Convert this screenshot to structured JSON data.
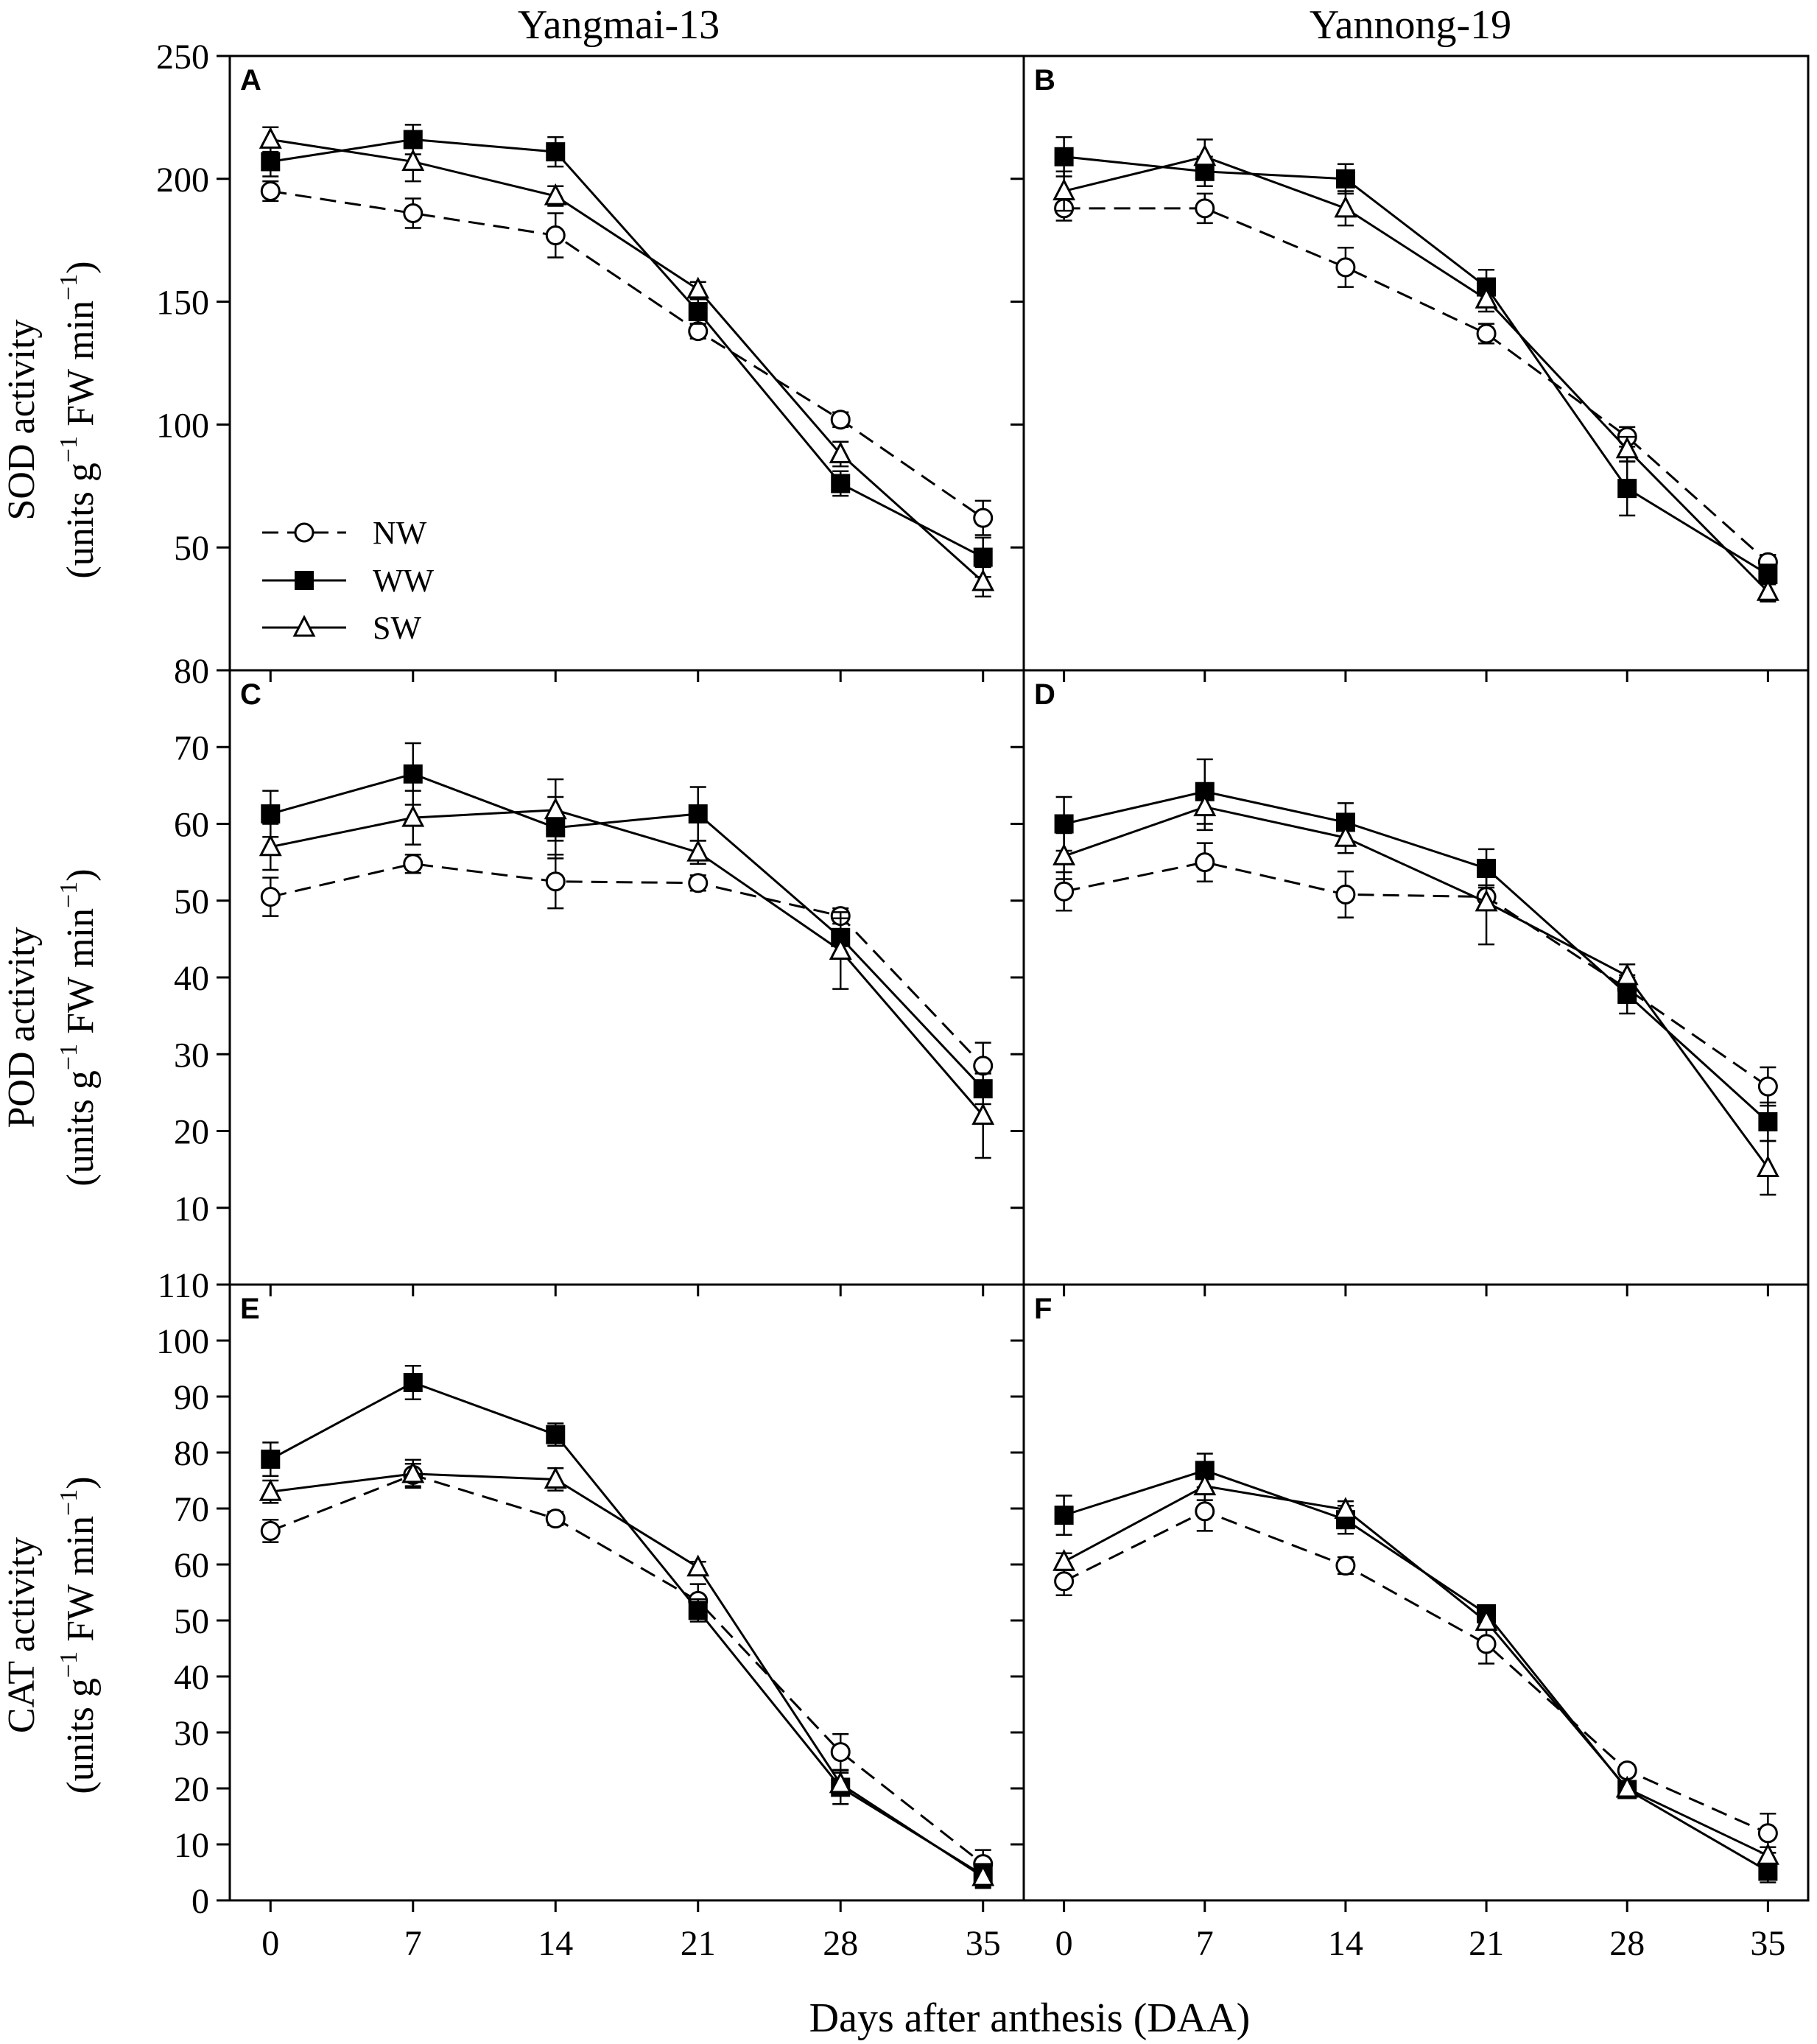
{
  "figure": {
    "column_titles": [
      "Yangmai-13",
      "Yannong-19"
    ],
    "x_label": "Days after anthesis (DAA)",
    "x_ticks": [
      "0",
      "7",
      "14",
      "21",
      "28",
      "35"
    ],
    "row_labels": [
      {
        "metric": "SOD activity",
        "unit_prefix": "(units g",
        "unit_sup1": "−1",
        "unit_mid": " FW min",
        "unit_sup2": "−1",
        "unit_suffix": ")"
      },
      {
        "metric": "POD activity",
        "unit_prefix": "(units g",
        "unit_sup1": "−1",
        "unit_mid": " FW min",
        "unit_sup2": "−1",
        "unit_suffix": ")"
      },
      {
        "metric": "CAT activity",
        "unit_prefix": "(units g",
        "unit_sup1": "−1",
        "unit_mid": " FW min",
        "unit_sup2": "−1",
        "unit_suffix": ")"
      }
    ],
    "legend": [
      {
        "label": "NW",
        "marker": "open-circle",
        "dash": true
      },
      {
        "label": "WW",
        "marker": "filled-square",
        "dash": false
      },
      {
        "label": "SW",
        "marker": "open-triangle",
        "dash": false
      }
    ]
  },
  "chart_data": [
    {
      "type": "line",
      "panel": "A",
      "cultivar": "Yangmai-13",
      "ylabel": "SOD activity",
      "x": [
        0,
        7,
        14,
        21,
        28,
        35
      ],
      "xlim": [
        -2,
        37
      ],
      "ylim": [
        0,
        250
      ],
      "y_ticks": [
        50,
        100,
        150,
        200,
        250
      ],
      "y_tick_labels": [
        "50",
        "100",
        "150",
        "200",
        "250"
      ],
      "series": [
        {
          "name": "NW",
          "values": [
            195,
            186,
            177,
            138,
            102,
            62
          ],
          "err": [
            4,
            6,
            9,
            3,
            3,
            7
          ]
        },
        {
          "name": "WW",
          "values": [
            207,
            216,
            211,
            146,
            76,
            46
          ],
          "err": [
            6,
            6,
            6,
            5,
            5,
            8
          ]
        },
        {
          "name": "SW",
          "values": [
            216,
            207,
            193,
            155,
            88,
            36
          ],
          "err": [
            5,
            8,
            4,
            3,
            5,
            6
          ]
        }
      ]
    },
    {
      "type": "line",
      "panel": "B",
      "cultivar": "Yannong-19",
      "ylabel": "SOD activity",
      "x": [
        0,
        7,
        14,
        21,
        28,
        35
      ],
      "xlim": [
        -2,
        37
      ],
      "ylim": [
        0,
        250
      ],
      "y_ticks": [
        50,
        100,
        150,
        200,
        250
      ],
      "y_tick_labels": [
        "50",
        "100",
        "150",
        "200",
        "250"
      ],
      "series": [
        {
          "name": "NW",
          "values": [
            188,
            188,
            164,
            137,
            95,
            44
          ],
          "err": [
            5,
            6,
            8,
            4,
            4,
            3
          ]
        },
        {
          "name": "WW",
          "values": [
            209,
            203,
            200,
            156,
            74,
            39
          ],
          "err": [
            8,
            6,
            6,
            7,
            11,
            4
          ]
        },
        {
          "name": "SW",
          "values": [
            195,
            209,
            188,
            151,
            90,
            32
          ],
          "err": [
            8,
            7,
            7,
            5,
            5,
            4
          ]
        }
      ]
    },
    {
      "type": "line",
      "panel": "C",
      "cultivar": "Yangmai-13",
      "ylabel": "POD activity",
      "x": [
        0,
        7,
        14,
        21,
        28,
        35
      ],
      "xlim": [
        -2,
        37
      ],
      "ylim": [
        0,
        80
      ],
      "y_ticks": [
        10,
        20,
        30,
        40,
        50,
        60,
        70,
        80
      ],
      "y_tick_labels": [
        "10",
        "20",
        "30",
        "40",
        "50",
        "60",
        "70",
        "80"
      ],
      "series": [
        {
          "name": "NW",
          "values": [
            50.5,
            54.8,
            52.5,
            52.3,
            48,
            28.5
          ],
          "err": [
            2.5,
            1.2,
            3.5,
            1,
            1,
            3
          ]
        },
        {
          "name": "WW",
          "values": [
            61.3,
            66.5,
            59.5,
            61.3,
            45.2,
            25.5
          ],
          "err": [
            3,
            4,
            4,
            3.5,
            2.5,
            2
          ]
        },
        {
          "name": "SW",
          "values": [
            57,
            60.8,
            61.8,
            56.3,
            43.5,
            22
          ],
          "err": [
            3,
            3.5,
            4,
            1.5,
            5,
            5.5
          ]
        }
      ]
    },
    {
      "type": "line",
      "panel": "D",
      "cultivar": "Yannong-19",
      "ylabel": "POD activity",
      "x": [
        0,
        7,
        14,
        21,
        28,
        35
      ],
      "xlim": [
        -2,
        37
      ],
      "ylim": [
        0,
        80
      ],
      "y_ticks": [
        10,
        20,
        30,
        40,
        50,
        60,
        70,
        80
      ],
      "y_tick_labels": [
        "10",
        "20",
        "30",
        "40",
        "50",
        "60",
        "70",
        "80"
      ],
      "series": [
        {
          "name": "NW",
          "values": [
            51.2,
            55,
            50.8,
            50.5,
            38.5,
            25.8
          ],
          "err": [
            2.5,
            2.5,
            3,
            1.5,
            1.5,
            2.5
          ]
        },
        {
          "name": "WW",
          "values": [
            60,
            64.2,
            60.2,
            54.2,
            37.8,
            21.2
          ],
          "err": [
            3.5,
            4.2,
            2.5,
            2.5,
            2.5,
            2.5
          ]
        },
        {
          "name": "SW",
          "values": [
            55.8,
            62.2,
            58.2,
            49.8,
            40.2,
            15.2
          ],
          "err": [
            3,
            3,
            2,
            5.5,
            1.5,
            3.5
          ]
        }
      ]
    },
    {
      "type": "line",
      "panel": "E",
      "cultivar": "Yangmai-13",
      "ylabel": "CAT activity",
      "x": [
        0,
        7,
        14,
        21,
        28,
        35
      ],
      "xlim": [
        -2,
        37
      ],
      "ylim": [
        0,
        110
      ],
      "y_ticks": [
        0,
        10,
        20,
        30,
        40,
        50,
        60,
        70,
        80,
        90,
        100,
        110
      ],
      "y_tick_labels": [
        "0",
        "10",
        "20",
        "30",
        "40",
        "50",
        "60",
        "70",
        "80",
        "90",
        "100",
        "110"
      ],
      "series": [
        {
          "name": "NW",
          "values": [
            66,
            76,
            68.2,
            53.5,
            26.5,
            6.5
          ],
          "err": [
            2,
            2,
            1.2,
            3,
            3.2,
            2.5
          ]
        },
        {
          "name": "WW",
          "values": [
            78.8,
            92.5,
            83.2,
            51.8,
            20.2,
            4.5
          ],
          "err": [
            3,
            3,
            2,
            2,
            3,
            2
          ]
        },
        {
          "name": "SW",
          "values": [
            73,
            76.2,
            75.2,
            59.5,
            20.8,
            4.2
          ],
          "err": [
            2,
            2.5,
            2,
            1,
            2,
            2
          ]
        }
      ]
    },
    {
      "type": "line",
      "panel": "F",
      "cultivar": "Yannong-19",
      "ylabel": "CAT activity",
      "x": [
        0,
        7,
        14,
        21,
        28,
        35
      ],
      "xlim": [
        -2,
        37
      ],
      "ylim": [
        0,
        110
      ],
      "y_ticks": [
        0,
        10,
        20,
        30,
        40,
        50,
        60,
        70,
        80,
        90,
        100,
        110
      ],
      "y_tick_labels": [
        "0",
        "10",
        "20",
        "30",
        "40",
        "50",
        "60",
        "70",
        "80",
        "90",
        "100",
        "110"
      ],
      "series": [
        {
          "name": "NW",
          "values": [
            57,
            69.5,
            59.8,
            45.8,
            23.2,
            12
          ],
          "err": [
            2.5,
            3.5,
            1.5,
            3.5,
            1,
            3.5
          ]
        },
        {
          "name": "WW",
          "values": [
            68.8,
            76.8,
            68,
            51.2,
            19.8,
            5.2
          ],
          "err": [
            3.5,
            3,
            2.5,
            1.5,
            1,
            2
          ]
        },
        {
          "name": "SW",
          "values": [
            60.5,
            74,
            69.8,
            49.8,
            20,
            8
          ],
          "err": [
            1.5,
            2.5,
            1.5,
            1.5,
            1,
            1.5
          ]
        }
      ]
    }
  ]
}
